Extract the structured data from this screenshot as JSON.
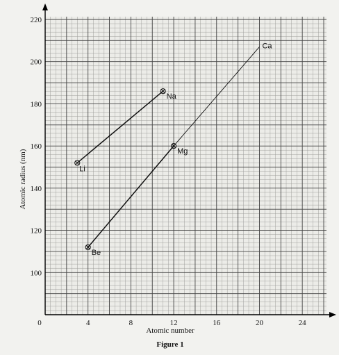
{
  "chart_data": {
    "type": "line",
    "caption": "Figure 1",
    "xlabel": "Atomic number",
    "ylabel": "Atomic radius (nm)",
    "xlim": [
      0,
      26
    ],
    "ylim": [
      80,
      220
    ],
    "xticks": [
      0,
      4,
      8,
      12,
      16,
      20,
      24
    ],
    "yticks": [
      100,
      120,
      140,
      160,
      180,
      200,
      220
    ],
    "origin_label": "0",
    "grid": true,
    "series": [
      {
        "points": [
          {
            "label": "Li",
            "x": 3,
            "y": 152
          },
          {
            "label": "Na",
            "x": 11,
            "y": 186
          }
        ]
      },
      {
        "points": [
          {
            "label": "Be",
            "x": 4,
            "y": 112
          },
          {
            "label": "Mg",
            "x": 12,
            "y": 160
          },
          {
            "label": "Ca",
            "x": 20,
            "y": 207
          }
        ]
      }
    ]
  }
}
